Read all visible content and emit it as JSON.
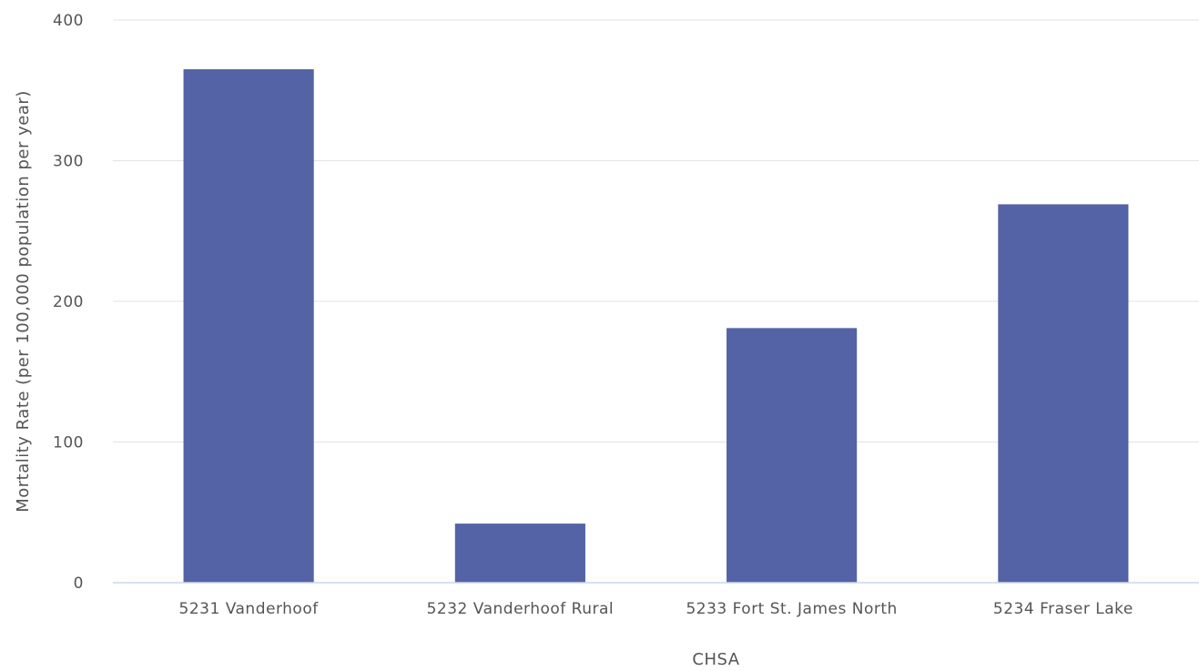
{
  "chart_data": {
    "type": "bar",
    "xlabel": "CHSA",
    "ylabel": "Mortality Rate (per 100,000 population per year)",
    "categories": [
      "5231 Vanderhoof",
      "5232 Vanderhoof Rural",
      "5233 Fort St. James North",
      "5234 Fraser Lake"
    ],
    "values": [
      365,
      42,
      181,
      269
    ],
    "ylim": [
      0,
      400
    ],
    "yticks": [
      0,
      100,
      200,
      300,
      400
    ],
    "grid": true,
    "legend": "none",
    "colors": {
      "bar": "#5363a5",
      "grid": "#e3e3e3",
      "baseline": "#cfd3ee",
      "text": "#555555"
    }
  }
}
